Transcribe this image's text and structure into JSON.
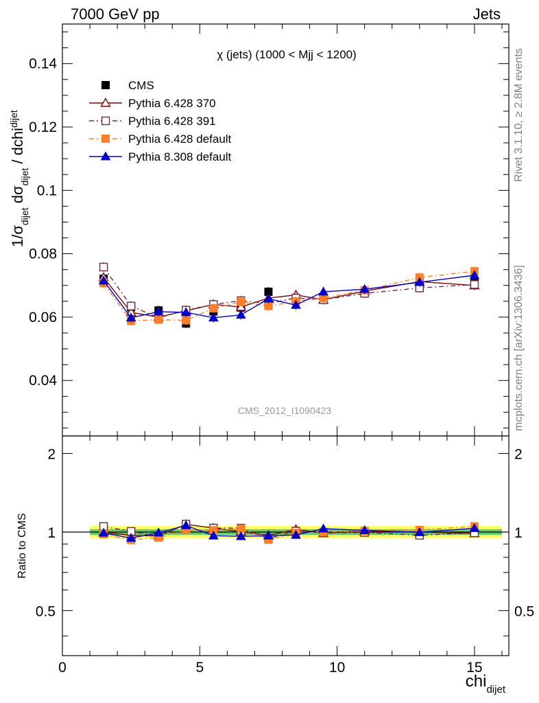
{
  "header": {
    "left": "7000 GeV pp",
    "right": "Jets"
  },
  "side_notes": {
    "rivet": "Rivet 3.1.10, ≥ 2.8M events",
    "mcplots": "mcplots.cern.ch [arXiv:1306.3436]"
  },
  "analysis_label": "CMS_2012_I1090423",
  "chart_data": [
    {
      "type": "line",
      "title": "χ (jets) (1000 < Mjj < 1200)",
      "xlabel": "chi",
      "xlabel_sub": "dijet",
      "ylabel_parts": {
        "a": "1/σ",
        "a_sub": "dijet",
        "b": " dσ",
        "b_sub": "dijet",
        "c": " / dchi",
        "c_sub": "dijet"
      },
      "xlim": [
        0,
        16.25
      ],
      "ylim": [
        0.0225,
        0.1525
      ],
      "x_ticks": [
        0,
        5,
        10,
        15
      ],
      "y_ticks": [
        0.04,
        0.06,
        0.08,
        0.1,
        0.12,
        0.14
      ],
      "y_tick_labels": [
        "0.04",
        "0.06",
        "0.08",
        "0.1",
        "0.12",
        "0.14"
      ],
      "legend_placement": "top-left",
      "x": [
        1.5,
        2.5,
        3.5,
        4.5,
        5.5,
        6.5,
        7.5,
        8.5,
        9.5,
        11,
        13,
        15
      ],
      "series": [
        {
          "name": "CMS",
          "color": "#000000",
          "marker": "square-filled",
          "line": "none",
          "values": [
            0.0721,
            0.0631,
            0.0621,
            0.058,
            0.0618,
            0.063,
            0.068,
            0.0655,
            0.066,
            0.0678,
            0.0712,
            0.0708
          ]
        },
        {
          "name": "Pythia 6.428 370",
          "color": "#800000",
          "marker": "triangle-open",
          "line": "solid",
          "values": [
            0.0725,
            0.0615,
            0.06,
            0.062,
            0.064,
            0.0632,
            0.066,
            0.067,
            0.0655,
            0.0682,
            0.0712,
            0.07
          ]
        },
        {
          "name": "Pythia 6.428 391",
          "color": "#6b2a3d",
          "marker": "square-open",
          "line": "dashdot",
          "values": [
            0.0758,
            0.0635,
            0.0598,
            0.0622,
            0.064,
            0.0652,
            0.0643,
            0.066,
            0.0655,
            0.0675,
            0.0692,
            0.0703
          ]
        },
        {
          "name": "Pythia 6.428 default",
          "color": "#ff7f2a",
          "marker": "square-filled",
          "line": "dashdot",
          "values": [
            0.0707,
            0.0588,
            0.0592,
            0.059,
            0.0628,
            0.0648,
            0.0635,
            0.065,
            0.066,
            0.0685,
            0.0725,
            0.0745
          ]
        },
        {
          "name": "Pythia 8.308 default",
          "color": "#0000cc",
          "marker": "triangle-filled",
          "line": "solid",
          "values": [
            0.0715,
            0.0598,
            0.0617,
            0.0615,
            0.0598,
            0.0607,
            0.0658,
            0.0638,
            0.068,
            0.0688,
            0.071,
            0.0732
          ]
        }
      ]
    },
    {
      "type": "line",
      "ylabel": "Ratio to CMS",
      "xlim": [
        0,
        16.25
      ],
      "ylim": [
        0.336,
        2.335
      ],
      "y_scale": "log",
      "y_ticks": [
        0.5,
        1,
        2
      ],
      "y_tick_labels": [
        "0.5",
        "1",
        "2"
      ],
      "band_colors": {
        "inner": "#66cc66",
        "outer": "#ffff66"
      },
      "band_x_range": [
        1,
        16
      ],
      "band_inner_halfwidth": 0.025,
      "band_outer_halfwidth": 0.055,
      "x": [
        1.5,
        2.5,
        3.5,
        4.5,
        5.5,
        6.5,
        7.5,
        8.5,
        9.5,
        11,
        13,
        15
      ],
      "series": [
        {
          "name": "Pythia 6.428 370",
          "color": "#800000",
          "marker": "triangle-open",
          "line": "solid",
          "values": [
            1.0,
            0.97,
            0.966,
            1.07,
            1.035,
            1.003,
            0.971,
            1.023,
            0.992,
            1.006,
            1.0,
            0.989
          ]
        },
        {
          "name": "Pythia 6.428 391",
          "color": "#6b2a3d",
          "marker": "square-open",
          "line": "dashdot",
          "values": [
            1.05,
            1.006,
            0.963,
            1.072,
            1.036,
            1.035,
            0.946,
            1.008,
            0.992,
            0.996,
            0.972,
            0.993
          ]
        },
        {
          "name": "Pythia 6.428 default",
          "color": "#ff7f2a",
          "marker": "square-filled",
          "line": "dashdot",
          "values": [
            0.98,
            0.932,
            0.953,
            1.017,
            1.016,
            1.029,
            0.934,
            0.992,
            1.0,
            1.01,
            1.018,
            1.052
          ]
        },
        {
          "name": "Pythia 8.308 default",
          "color": "#0000cc",
          "marker": "triangle-filled",
          "line": "solid",
          "values": [
            0.992,
            0.948,
            0.994,
            1.06,
            0.968,
            0.963,
            0.968,
            0.974,
            1.03,
            1.015,
            0.997,
            1.034
          ]
        }
      ]
    }
  ]
}
